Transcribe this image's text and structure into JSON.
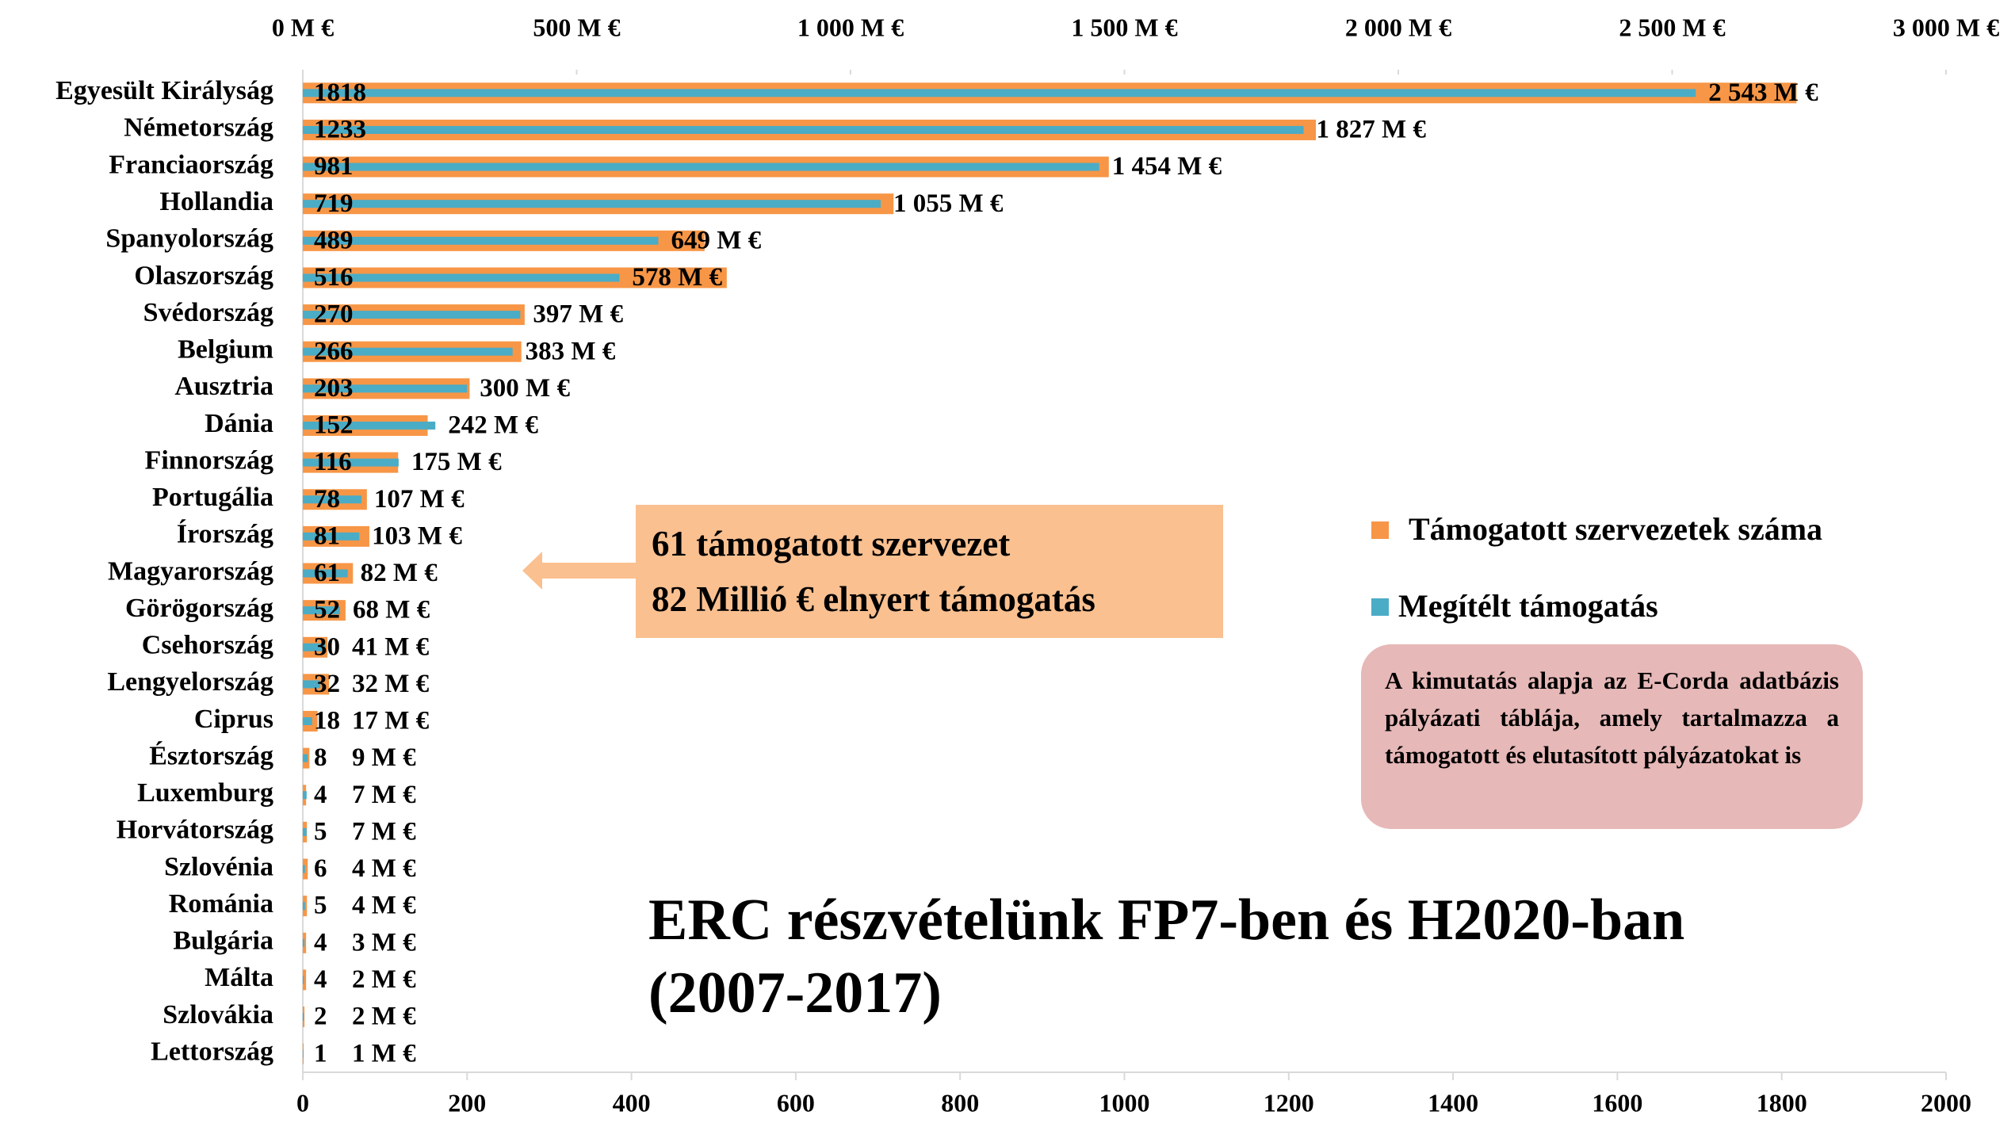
{
  "chart_data": {
    "type": "hbar",
    "title": "ERC részvételünk FP7-ben és H2020-ban (2007-2017)",
    "annotation": [
      "61 támogatott szervezet",
      "82 Millió € elnyert támogatás"
    ],
    "note": "A kimutatás alapja az E-Corda adatbázis pályázati táblája, amely tartalmazza a támogatott és elutasított pályázatokat is",
    "categories": [
      "Egyesült Királyság",
      "Németország",
      "Franciaország",
      "Hollandia",
      "Spanyolország",
      "Olaszország",
      "Svédország",
      "Belgium",
      "Ausztria",
      "Dánia",
      "Finnország",
      "Portugália",
      "Írország",
      "Magyarország",
      "Görögország",
      "Csehország",
      "Lengyelország",
      "Ciprus",
      "Észtország",
      "Luxemburg",
      "Horvátország",
      "Szlovénia",
      "Románia",
      "Bulgária",
      "Málta",
      "Szlovákia",
      "Lettország"
    ],
    "series": [
      {
        "name": "Támogatott szervezetek száma",
        "color": "#f79646",
        "axis": "x",
        "values": [
          1818,
          1233,
          981,
          719,
          489,
          516,
          270,
          266,
          203,
          152,
          116,
          78,
          81,
          61,
          52,
          30,
          32,
          18,
          8,
          4,
          5,
          6,
          5,
          4,
          4,
          2,
          1
        ]
      },
      {
        "name": "Megítélt támogatás",
        "color": "#4bacc6",
        "axis": "x2",
        "values": [
          2543,
          1827,
          1454,
          1055,
          649,
          578,
          397,
          383,
          300,
          242,
          175,
          107,
          103,
          82,
          68,
          41,
          32,
          17,
          9,
          7,
          7,
          4,
          4,
          3,
          2,
          2,
          1
        ],
        "value_labels": [
          "2 543 M €",
          "1 827 M €",
          "1 454 M €",
          "1 055 M €",
          "649 M €",
          "578 M €",
          "397 M €",
          "383 M €",
          "300 M €",
          "242 M €",
          "175 M €",
          "107 M €",
          "103 M €",
          "82 M €",
          "68 M €",
          "41 M €",
          "32 M €",
          "17 M €",
          "9 M €",
          "7 M €",
          "7 M €",
          "4 M €",
          "4 M €",
          "3 M €",
          "2 M €",
          "2 M €",
          "1 M €"
        ]
      }
    ],
    "xlim": [
      0,
      2000
    ],
    "xticks": [
      0,
      200,
      400,
      600,
      800,
      1000,
      1200,
      1400,
      1600,
      1800,
      2000
    ],
    "x2lim": [
      0,
      3000
    ],
    "x2ticks": [
      {
        "value": 0,
        "label": "0 M €"
      },
      {
        "value": 500,
        "label": "500 M €"
      },
      {
        "value": 1000,
        "label": "1 000 M €"
      },
      {
        "value": 1500,
        "label": "1 500 M €"
      },
      {
        "value": 2000,
        "label": "2 000 M €"
      },
      {
        "value": 2500,
        "label": "2 500 M €"
      },
      {
        "value": 3000,
        "label": "3 000 M €"
      }
    ],
    "grid": false,
    "legend": "right"
  }
}
